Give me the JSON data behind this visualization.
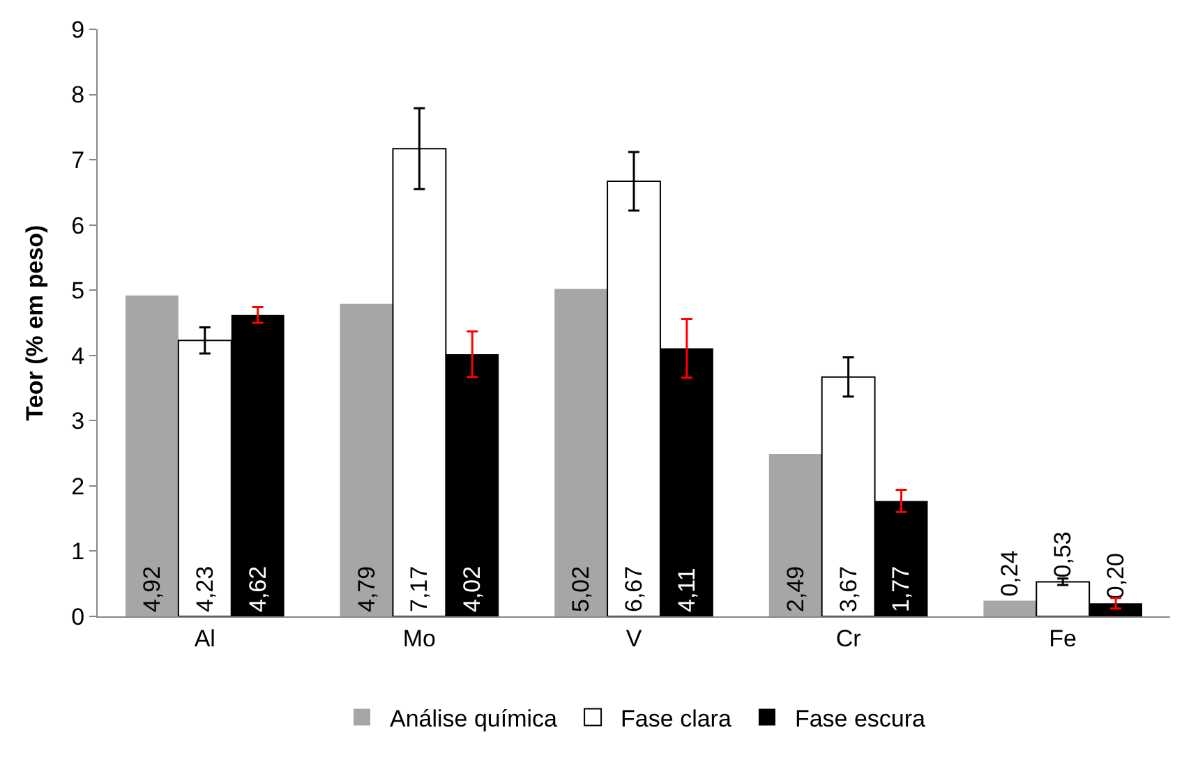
{
  "chart_data": {
    "type": "bar",
    "ylabel": "Teor (% em peso)",
    "categories": [
      "Al",
      "Mo",
      "V",
      "Cr",
      "Fe"
    ],
    "series": [
      {
        "name": "Análise química",
        "color": "#a6a6a6",
        "values": [
          4.92,
          4.79,
          5.02,
          2.49,
          0.24
        ],
        "value_labels": [
          "4,92",
          "4,79",
          "5,02",
          "2,49",
          "0,24"
        ]
      },
      {
        "name": "Fase clara",
        "color": "#ffffff",
        "values": [
          4.23,
          7.17,
          6.67,
          3.67,
          0.53
        ],
        "value_labels": [
          "4,23",
          "7,17",
          "6,67",
          "3,67",
          "0,53"
        ],
        "errors": [
          0.2,
          0.62,
          0.45,
          0.3,
          0.05
        ]
      },
      {
        "name": "Fase escura",
        "color": "#000000",
        "values": [
          4.62,
          4.02,
          4.11,
          1.77,
          0.2
        ],
        "value_labels": [
          "4,62",
          "4,02",
          "4,11",
          "1,77",
          "0,20"
        ],
        "errors": [
          0.12,
          0.35,
          0.45,
          0.17,
          0.08
        ]
      }
    ],
    "ylim": [
      0,
      9
    ],
    "yticks": [
      0,
      1,
      2,
      3,
      4,
      5,
      6,
      7,
      8,
      9
    ],
    "legend": "bottom"
  }
}
